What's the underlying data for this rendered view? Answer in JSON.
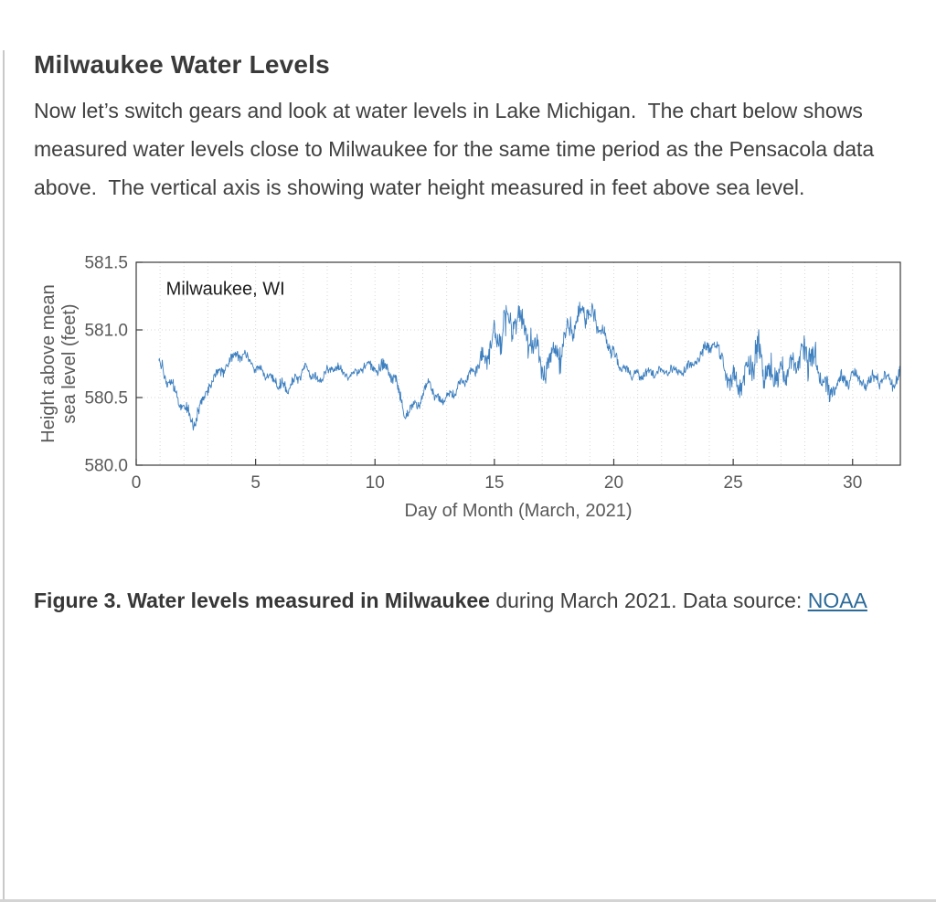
{
  "page": {
    "heading": "Milwaukee Water Levels",
    "intro": "Now let’s switch gears and look at water levels in Lake Michigan.  The chart below shows measured water levels close to Milwaukee for the same time period as the Pensacola data above.  The vertical axis is showing water height measured in feet above sea level.",
    "caption": {
      "bold": "Figure 3. Water levels measured in Milwaukee",
      "rest": " during March 2021. Data source: ",
      "link_text": "NOAA"
    }
  },
  "colors": {
    "chart_line": "#3d7fbf",
    "link": "#2b6a99",
    "axis_text": "#595959",
    "spine": "#3b3b3b",
    "grid": "#d7d7d7"
  },
  "chart_data": {
    "type": "line",
    "inner_label": "Milwaukee, WI",
    "xlabel": "Day of Month (March, 2021)",
    "ylabel": "Height above mean sea level (feet)",
    "ylabel_lines": [
      "Height above mean",
      "sea level (feet)"
    ],
    "xlim": [
      0,
      32
    ],
    "ylim": [
      580.0,
      581.5
    ],
    "xticks": [
      0,
      5,
      10,
      15,
      20,
      25,
      30
    ],
    "yticks": [
      580.0,
      580.5,
      581.0,
      581.5
    ],
    "grid": "dotted vertical line each day, dotted horizontal at interior y-ticks",
    "legend": "none",
    "line_color": "#3d7fbf",
    "series": [
      {
        "name": "Milwaukee water level (feet above mean sea level)",
        "control_points": {
          "day": [
            1.0,
            1.4,
            2.0,
            2.5,
            3.0,
            3.6,
            4.3,
            5.0,
            5.6,
            6.3,
            7.1,
            7.6,
            8.2,
            9.0,
            9.6,
            10.2,
            10.8,
            11.2,
            11.8,
            12.3,
            12.6,
            13.2,
            14.0,
            14.6,
            15.1,
            15.7,
            16.1,
            16.6,
            17.1,
            17.6,
            18.2,
            18.7,
            19.2,
            19.8,
            20.3,
            21.0,
            22.0,
            23.0,
            23.7,
            24.2,
            24.6,
            25.1,
            25.6,
            26.0,
            26.5,
            27.0,
            27.6,
            28.0,
            28.5,
            29.0,
            29.5,
            30.0,
            30.6,
            31.2,
            31.7,
            32.0
          ],
          "level": [
            580.72,
            580.62,
            580.42,
            580.33,
            580.58,
            580.7,
            580.84,
            580.72,
            580.65,
            580.57,
            580.72,
            580.62,
            580.72,
            580.66,
            580.73,
            580.72,
            580.68,
            580.38,
            580.45,
            580.62,
            580.47,
            580.52,
            580.68,
            580.8,
            580.95,
            581.08,
            581.02,
            580.92,
            580.72,
            580.82,
            581.02,
            581.15,
            581.08,
            580.88,
            580.72,
            580.66,
            580.7,
            580.7,
            580.82,
            580.92,
            580.72,
            580.58,
            580.7,
            580.85,
            580.68,
            580.66,
            580.74,
            580.86,
            580.76,
            580.52,
            580.62,
            580.66,
            580.6,
            580.66,
            580.6,
            580.68
          ],
          "noise_amp": [
            0.08,
            0.07,
            0.07,
            0.08,
            0.06,
            0.06,
            0.06,
            0.05,
            0.05,
            0.06,
            0.06,
            0.05,
            0.05,
            0.05,
            0.05,
            0.08,
            0.07,
            0.08,
            0.06,
            0.07,
            0.06,
            0.05,
            0.06,
            0.1,
            0.16,
            0.22,
            0.2,
            0.16,
            0.18,
            0.16,
            0.14,
            0.12,
            0.1,
            0.08,
            0.06,
            0.05,
            0.05,
            0.05,
            0.06,
            0.08,
            0.1,
            0.14,
            0.16,
            0.22,
            0.16,
            0.14,
            0.12,
            0.2,
            0.14,
            0.1,
            0.08,
            0.07,
            0.08,
            0.08,
            0.07,
            0.06
          ]
        }
      }
    ]
  }
}
